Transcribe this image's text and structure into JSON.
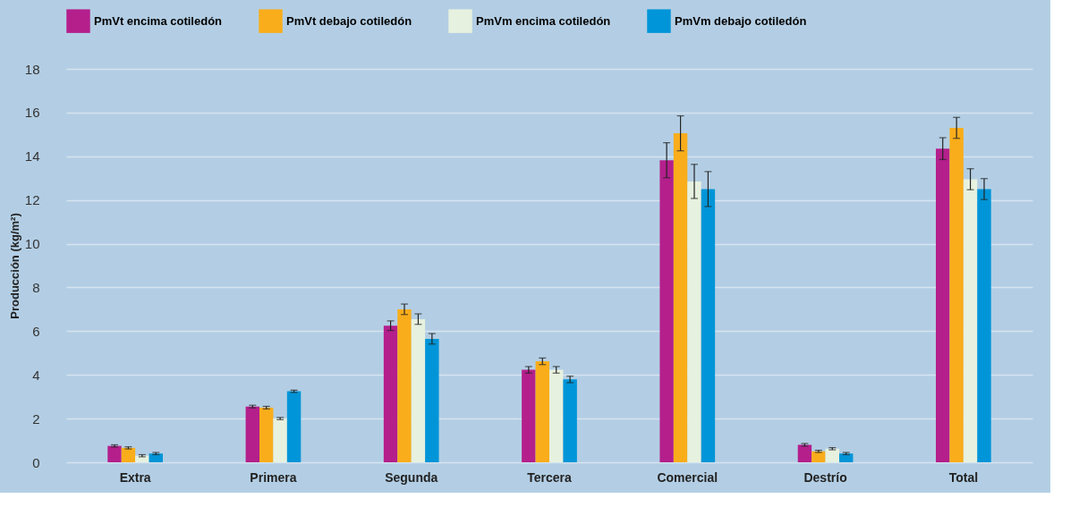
{
  "chart_data": {
    "type": "bar",
    "ylabel": "Producción (kg/m²)",
    "categories": [
      "Extra",
      "Primera",
      "Segunda",
      "Tercera",
      "Comercial",
      "Destrío",
      "Total"
    ],
    "series": [
      {
        "name": "PmVt encima cotiledón",
        "color": "#b41f8c",
        "values": [
          0.75,
          2.55,
          6.25,
          4.23,
          13.82,
          0.8,
          14.35
        ],
        "errors": [
          0.05,
          0.06,
          0.22,
          0.15,
          0.8,
          0.06,
          0.5
        ]
      },
      {
        "name": "PmVt debajo cotiledón",
        "color": "#f9ad1b",
        "values": [
          0.66,
          2.5,
          7.0,
          4.62,
          15.05,
          0.5,
          15.3
        ],
        "errors": [
          0.05,
          0.06,
          0.24,
          0.15,
          0.8,
          0.05,
          0.48
        ]
      },
      {
        "name": "PmVm encima cotiledón",
        "color": "#e7f1df",
        "values": [
          0.3,
          2.0,
          6.55,
          4.23,
          12.85,
          0.62,
          12.95
        ],
        "errors": [
          0.05,
          0.05,
          0.24,
          0.15,
          0.78,
          0.05,
          0.48
        ]
      },
      {
        "name": "PmVm debajo cotiledón",
        "color": "#0095d8",
        "values": [
          0.4,
          3.25,
          5.65,
          3.79,
          12.5,
          0.4,
          12.5
        ],
        "errors": [
          0.05,
          0.05,
          0.24,
          0.15,
          0.8,
          0.05,
          0.48
        ]
      }
    ],
    "ylim": [
      0,
      18
    ],
    "yticks": [
      0,
      2,
      4,
      6,
      8,
      10,
      12,
      14,
      16,
      18
    ],
    "grid": "y",
    "legend": "top left"
  }
}
